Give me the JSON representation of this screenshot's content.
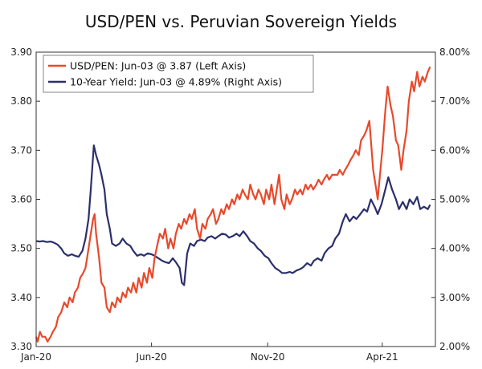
{
  "chart_data": {
    "type": "line",
    "title": "USD/PEN vs. Peruvian Sovereign Yields",
    "xlabel": "",
    "ylabel_left": "",
    "ylabel_right": "",
    "x_ticks": [
      "Jan-20",
      "Jun-20",
      "Nov-20",
      "Apr-21"
    ],
    "x_range": [
      "2020-01-01",
      "2021-06-10"
    ],
    "y_left_range": [
      3.3,
      3.9
    ],
    "y_left_ticks": [
      "3.30",
      "3.40",
      "3.50",
      "3.60",
      "3.70",
      "3.80",
      "3.90"
    ],
    "y_right_range": [
      2.0,
      8.0
    ],
    "y_right_ticks": [
      "2.00%",
      "3.00%",
      "4.00%",
      "5.00%",
      "6.00%",
      "7.00%",
      "8.00%"
    ],
    "grid": false,
    "legend_position": "top-left",
    "series": [
      {
        "name": "USD/PEN: Jun-03 @ 3.87 (Left Axis)",
        "axis": "left",
        "color": "#e8492b",
        "points": [
          [
            "2020-01-01",
            3.32
          ],
          [
            "2020-01-03",
            3.31
          ],
          [
            "2020-01-06",
            3.33
          ],
          [
            "2020-01-09",
            3.32
          ],
          [
            "2020-01-13",
            3.32
          ],
          [
            "2020-01-16",
            3.31
          ],
          [
            "2020-01-20",
            3.32
          ],
          [
            "2020-01-23",
            3.33
          ],
          [
            "2020-01-27",
            3.34
          ],
          [
            "2020-01-30",
            3.36
          ],
          [
            "2020-02-03",
            3.37
          ],
          [
            "2020-02-07",
            3.39
          ],
          [
            "2020-02-11",
            3.38
          ],
          [
            "2020-02-14",
            3.4
          ],
          [
            "2020-02-18",
            3.39
          ],
          [
            "2020-02-21",
            3.41
          ],
          [
            "2020-02-25",
            3.42
          ],
          [
            "2020-02-28",
            3.44
          ],
          [
            "2020-03-03",
            3.45
          ],
          [
            "2020-03-06",
            3.46
          ],
          [
            "2020-03-09",
            3.49
          ],
          [
            "2020-03-12",
            3.52
          ],
          [
            "2020-03-16",
            3.56
          ],
          [
            "2020-03-18",
            3.57
          ],
          [
            "2020-03-20",
            3.53
          ],
          [
            "2020-03-24",
            3.48
          ],
          [
            "2020-03-27",
            3.43
          ],
          [
            "2020-03-31",
            3.42
          ],
          [
            "2020-04-03",
            3.38
          ],
          [
            "2020-04-07",
            3.37
          ],
          [
            "2020-04-10",
            3.39
          ],
          [
            "2020-04-14",
            3.38
          ],
          [
            "2020-04-17",
            3.4
          ],
          [
            "2020-04-21",
            3.39
          ],
          [
            "2020-04-24",
            3.41
          ],
          [
            "2020-04-28",
            3.4
          ],
          [
            "2020-05-01",
            3.42
          ],
          [
            "2020-05-05",
            3.41
          ],
          [
            "2020-05-08",
            3.43
          ],
          [
            "2020-05-12",
            3.41
          ],
          [
            "2020-05-15",
            3.44
          ],
          [
            "2020-05-19",
            3.42
          ],
          [
            "2020-05-22",
            3.45
          ],
          [
            "2020-05-26",
            3.43
          ],
          [
            "2020-05-29",
            3.46
          ],
          [
            "2020-06-02",
            3.44
          ],
          [
            "2020-06-05",
            3.48
          ],
          [
            "2020-06-09",
            3.51
          ],
          [
            "2020-06-12",
            3.53
          ],
          [
            "2020-06-16",
            3.52
          ],
          [
            "2020-06-19",
            3.54
          ],
          [
            "2020-06-23",
            3.5
          ],
          [
            "2020-06-26",
            3.52
          ],
          [
            "2020-06-30",
            3.5
          ],
          [
            "2020-07-03",
            3.53
          ],
          [
            "2020-07-07",
            3.55
          ],
          [
            "2020-07-10",
            3.54
          ],
          [
            "2020-07-14",
            3.56
          ],
          [
            "2020-07-17",
            3.55
          ],
          [
            "2020-07-21",
            3.57
          ],
          [
            "2020-07-24",
            3.56
          ],
          [
            "2020-07-28",
            3.58
          ],
          [
            "2020-07-31",
            3.54
          ],
          [
            "2020-08-04",
            3.52
          ],
          [
            "2020-08-07",
            3.55
          ],
          [
            "2020-08-11",
            3.54
          ],
          [
            "2020-08-14",
            3.56
          ],
          [
            "2020-08-18",
            3.57
          ],
          [
            "2020-08-21",
            3.58
          ],
          [
            "2020-08-25",
            3.55
          ],
          [
            "2020-08-28",
            3.56
          ],
          [
            "2020-09-01",
            3.58
          ],
          [
            "2020-09-04",
            3.57
          ],
          [
            "2020-09-08",
            3.59
          ],
          [
            "2020-09-11",
            3.58
          ],
          [
            "2020-09-15",
            3.6
          ],
          [
            "2020-09-18",
            3.59
          ],
          [
            "2020-09-22",
            3.61
          ],
          [
            "2020-09-25",
            3.6
          ],
          [
            "2020-09-29",
            3.62
          ],
          [
            "2020-10-02",
            3.61
          ],
          [
            "2020-10-06",
            3.6
          ],
          [
            "2020-10-09",
            3.63
          ],
          [
            "2020-10-13",
            3.61
          ],
          [
            "2020-10-16",
            3.6
          ],
          [
            "2020-10-20",
            3.62
          ],
          [
            "2020-10-23",
            3.61
          ],
          [
            "2020-10-27",
            3.59
          ],
          [
            "2020-10-30",
            3.62
          ],
          [
            "2020-11-03",
            3.6
          ],
          [
            "2020-11-06",
            3.63
          ],
          [
            "2020-11-10",
            3.59
          ],
          [
            "2020-11-13",
            3.62
          ],
          [
            "2020-11-16",
            3.65
          ],
          [
            "2020-11-19",
            3.6
          ],
          [
            "2020-11-23",
            3.58
          ],
          [
            "2020-11-26",
            3.61
          ],
          [
            "2020-11-30",
            3.59
          ],
          [
            "2020-12-03",
            3.6
          ],
          [
            "2020-12-07",
            3.62
          ],
          [
            "2020-12-10",
            3.61
          ],
          [
            "2020-12-14",
            3.62
          ],
          [
            "2020-12-17",
            3.61
          ],
          [
            "2020-12-21",
            3.63
          ],
          [
            "2020-12-24",
            3.62
          ],
          [
            "2020-12-28",
            3.63
          ],
          [
            "2020-12-31",
            3.62
          ],
          [
            "2021-01-04",
            3.63
          ],
          [
            "2021-01-07",
            3.64
          ],
          [
            "2021-01-11",
            3.63
          ],
          [
            "2021-01-14",
            3.64
          ],
          [
            "2021-01-18",
            3.65
          ],
          [
            "2021-01-21",
            3.64
          ],
          [
            "2021-01-25",
            3.65
          ],
          [
            "2021-01-28",
            3.65
          ],
          [
            "2021-02-01",
            3.65
          ],
          [
            "2021-02-04",
            3.66
          ],
          [
            "2021-02-08",
            3.65
          ],
          [
            "2021-02-11",
            3.66
          ],
          [
            "2021-02-15",
            3.67
          ],
          [
            "2021-02-18",
            3.68
          ],
          [
            "2021-02-22",
            3.69
          ],
          [
            "2021-02-25",
            3.7
          ],
          [
            "2021-03-01",
            3.69
          ],
          [
            "2021-03-04",
            3.72
          ],
          [
            "2021-03-08",
            3.73
          ],
          [
            "2021-03-11",
            3.74
          ],
          [
            "2021-03-15",
            3.76
          ],
          [
            "2021-03-17",
            3.72
          ],
          [
            "2021-03-20",
            3.66
          ],
          [
            "2021-03-23",
            3.63
          ],
          [
            "2021-03-26",
            3.6
          ],
          [
            "2021-03-29",
            3.65
          ],
          [
            "2021-04-01",
            3.7
          ],
          [
            "2021-04-05",
            3.78
          ],
          [
            "2021-04-08",
            3.83
          ],
          [
            "2021-04-12",
            3.79
          ],
          [
            "2021-04-15",
            3.77
          ],
          [
            "2021-04-19",
            3.72
          ],
          [
            "2021-04-22",
            3.71
          ],
          [
            "2021-04-26",
            3.66
          ],
          [
            "2021-04-29",
            3.7
          ],
          [
            "2021-05-03",
            3.74
          ],
          [
            "2021-05-06",
            3.8
          ],
          [
            "2021-05-10",
            3.84
          ],
          [
            "2021-05-13",
            3.82
          ],
          [
            "2021-05-17",
            3.86
          ],
          [
            "2021-05-20",
            3.83
          ],
          [
            "2021-05-24",
            3.85
          ],
          [
            "2021-05-27",
            3.84
          ],
          [
            "2021-05-31",
            3.86
          ],
          [
            "2021-06-03",
            3.87
          ]
        ]
      },
      {
        "name": "10-Year Yield: Jun-03 @ 4.89% (Right Axis)",
        "axis": "right",
        "color": "#2b2f6b",
        "points": [
          [
            "2020-01-01",
            4.15
          ],
          [
            "2020-01-06",
            4.14
          ],
          [
            "2020-01-10",
            4.15
          ],
          [
            "2020-01-15",
            4.13
          ],
          [
            "2020-01-20",
            4.14
          ],
          [
            "2020-01-24",
            4.12
          ],
          [
            "2020-01-29",
            4.08
          ],
          [
            "2020-02-03",
            4.0
          ],
          [
            "2020-02-07",
            3.9
          ],
          [
            "2020-02-12",
            3.85
          ],
          [
            "2020-02-17",
            3.88
          ],
          [
            "2020-02-21",
            3.85
          ],
          [
            "2020-02-26",
            3.83
          ],
          [
            "2020-03-02",
            3.95
          ],
          [
            "2020-03-06",
            4.2
          ],
          [
            "2020-03-10",
            4.6
          ],
          [
            "2020-03-13",
            5.2
          ],
          [
            "2020-03-17",
            6.1
          ],
          [
            "2020-03-20",
            5.9
          ],
          [
            "2020-03-24",
            5.7
          ],
          [
            "2020-03-27",
            5.5
          ],
          [
            "2020-03-31",
            5.2
          ],
          [
            "2020-04-03",
            4.7
          ],
          [
            "2020-04-07",
            4.4
          ],
          [
            "2020-04-10",
            4.1
          ],
          [
            "2020-04-15",
            4.05
          ],
          [
            "2020-04-20",
            4.1
          ],
          [
            "2020-04-24",
            4.2
          ],
          [
            "2020-04-29",
            4.1
          ],
          [
            "2020-05-04",
            4.05
          ],
          [
            "2020-05-08",
            3.95
          ],
          [
            "2020-05-13",
            3.85
          ],
          [
            "2020-05-18",
            3.88
          ],
          [
            "2020-05-22",
            3.85
          ],
          [
            "2020-05-27",
            3.9
          ],
          [
            "2020-06-01",
            3.88
          ],
          [
            "2020-06-05",
            3.85
          ],
          [
            "2020-06-10",
            3.8
          ],
          [
            "2020-06-15",
            3.75
          ],
          [
            "2020-06-19",
            3.72
          ],
          [
            "2020-06-24",
            3.7
          ],
          [
            "2020-06-29",
            3.8
          ],
          [
            "2020-07-03",
            3.72
          ],
          [
            "2020-07-08",
            3.6
          ],
          [
            "2020-07-11",
            3.3
          ],
          [
            "2020-07-14",
            3.25
          ],
          [
            "2020-07-18",
            3.9
          ],
          [
            "2020-07-22",
            4.1
          ],
          [
            "2020-07-27",
            4.05
          ],
          [
            "2020-07-31",
            4.15
          ],
          [
            "2020-08-05",
            4.18
          ],
          [
            "2020-08-10",
            4.15
          ],
          [
            "2020-08-14",
            4.22
          ],
          [
            "2020-08-19",
            4.25
          ],
          [
            "2020-08-24",
            4.2
          ],
          [
            "2020-08-28",
            4.25
          ],
          [
            "2020-09-02",
            4.3
          ],
          [
            "2020-09-07",
            4.28
          ],
          [
            "2020-09-11",
            4.22
          ],
          [
            "2020-09-16",
            4.25
          ],
          [
            "2020-09-21",
            4.3
          ],
          [
            "2020-09-25",
            4.25
          ],
          [
            "2020-09-30",
            4.35
          ],
          [
            "2020-10-05",
            4.25
          ],
          [
            "2020-10-09",
            4.15
          ],
          [
            "2020-10-14",
            4.1
          ],
          [
            "2020-10-19",
            4.0
          ],
          [
            "2020-10-23",
            3.95
          ],
          [
            "2020-10-28",
            3.85
          ],
          [
            "2020-11-02",
            3.8
          ],
          [
            "2020-11-06",
            3.7
          ],
          [
            "2020-11-11",
            3.6
          ],
          [
            "2020-11-16",
            3.55
          ],
          [
            "2020-11-20",
            3.5
          ],
          [
            "2020-11-25",
            3.5
          ],
          [
            "2020-11-30",
            3.52
          ],
          [
            "2020-12-04",
            3.5
          ],
          [
            "2020-12-09",
            3.55
          ],
          [
            "2020-12-14",
            3.58
          ],
          [
            "2020-12-18",
            3.62
          ],
          [
            "2020-12-23",
            3.7
          ],
          [
            "2020-12-28",
            3.65
          ],
          [
            "2021-01-01",
            3.75
          ],
          [
            "2021-01-06",
            3.8
          ],
          [
            "2021-01-11",
            3.75
          ],
          [
            "2021-01-15",
            3.9
          ],
          [
            "2021-01-20",
            4.0
          ],
          [
            "2021-01-25",
            4.05
          ],
          [
            "2021-01-29",
            4.2
          ],
          [
            "2021-02-03",
            4.3
          ],
          [
            "2021-02-08",
            4.55
          ],
          [
            "2021-02-12",
            4.7
          ],
          [
            "2021-02-17",
            4.55
          ],
          [
            "2021-02-22",
            4.65
          ],
          [
            "2021-02-26",
            4.6
          ],
          [
            "2021-03-03",
            4.7
          ],
          [
            "2021-03-08",
            4.8
          ],
          [
            "2021-03-12",
            4.75
          ],
          [
            "2021-03-17",
            5.0
          ],
          [
            "2021-03-22",
            4.85
          ],
          [
            "2021-03-26",
            4.7
          ],
          [
            "2021-03-31",
            4.9
          ],
          [
            "2021-04-05",
            5.2
          ],
          [
            "2021-04-09",
            5.45
          ],
          [
            "2021-04-14",
            5.2
          ],
          [
            "2021-04-19",
            5.0
          ],
          [
            "2021-04-23",
            4.8
          ],
          [
            "2021-04-28",
            4.95
          ],
          [
            "2021-05-03",
            4.8
          ],
          [
            "2021-05-07",
            5.0
          ],
          [
            "2021-05-12",
            4.9
          ],
          [
            "2021-05-17",
            5.05
          ],
          [
            "2021-05-21",
            4.8
          ],
          [
            "2021-05-26",
            4.85
          ],
          [
            "2021-05-31",
            4.8
          ],
          [
            "2021-06-03",
            4.89
          ]
        ]
      }
    ]
  }
}
